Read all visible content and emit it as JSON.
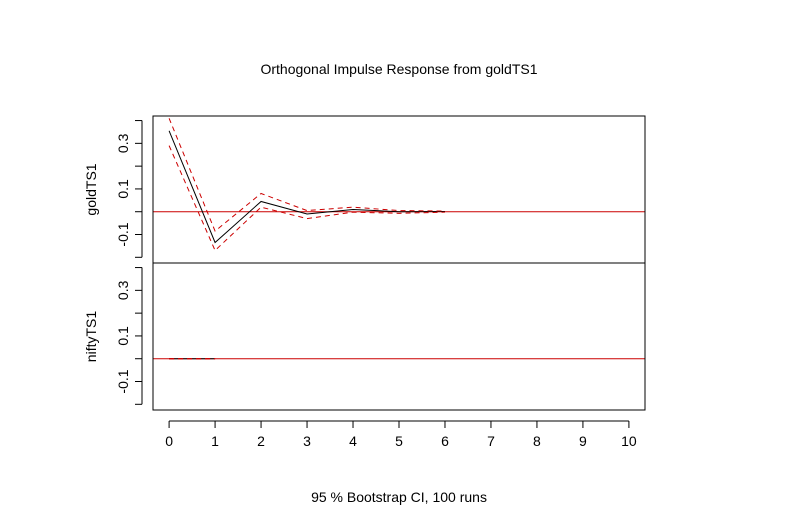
{
  "chart_data": {
    "type": "line",
    "title": "Orthogonal Impulse Response from goldTS1",
    "xlabel": "95 % Bootstrap CI,  100 runs",
    "x_ticks": [
      "0",
      "1",
      "2",
      "3",
      "4",
      "5",
      "6",
      "7",
      "8",
      "9",
      "10"
    ],
    "xlim": [
      -0.35,
      10.35
    ],
    "colors": {
      "response": "#000000",
      "ci": "#cc0000",
      "zero_line": "#cc0000",
      "axis": "#000000"
    },
    "panels": [
      {
        "ylabel": "goldTS1",
        "ylim": [
          -0.225,
          0.42
        ],
        "y_ticks": [
          "-0.1",
          "0.1",
          "0.3"
        ],
        "y_tick_values": [
          -0.1,
          0.1,
          0.3
        ],
        "y_minor_ticks": [
          -0.2,
          0.0,
          0.2,
          0.4
        ],
        "zero_line": 0,
        "series": [
          {
            "role": "response",
            "x": [
              0,
              1,
              2,
              3,
              4,
              5,
              6
            ],
            "values": [
              0.355,
              -0.135,
              0.045,
              -0.01,
              0.01,
              0.0,
              0.001
            ]
          },
          {
            "role": "upper",
            "x": [
              0,
              1,
              2,
              3,
              4,
              5,
              6
            ],
            "values": [
              0.41,
              -0.085,
              0.08,
              0.005,
              0.02,
              0.005,
              0.003
            ]
          },
          {
            "role": "lower",
            "x": [
              0,
              1,
              2,
              3,
              4,
              5,
              6
            ],
            "values": [
              0.29,
              -0.17,
              0.02,
              -0.03,
              -0.002,
              -0.007,
              -0.002
            ]
          }
        ]
      },
      {
        "ylabel": "niftyTS1",
        "ylim": [
          -0.225,
          0.42
        ],
        "y_ticks": [
          "-0.1",
          "0.1",
          "0.3"
        ],
        "y_tick_values": [
          -0.1,
          0.1,
          0.3
        ],
        "y_minor_ticks": [
          -0.2,
          0.0,
          0.2,
          0.4
        ],
        "zero_line": 0,
        "series": [
          {
            "role": "response",
            "x": [
              0,
              1
            ],
            "values": [
              0.0,
              0.0
            ]
          },
          {
            "role": "upper",
            "x": [
              0,
              1
            ],
            "values": [
              0.001,
              0.001
            ]
          },
          {
            "role": "lower",
            "x": [
              0,
              1
            ],
            "values": [
              -0.001,
              -0.001
            ]
          }
        ]
      }
    ]
  }
}
